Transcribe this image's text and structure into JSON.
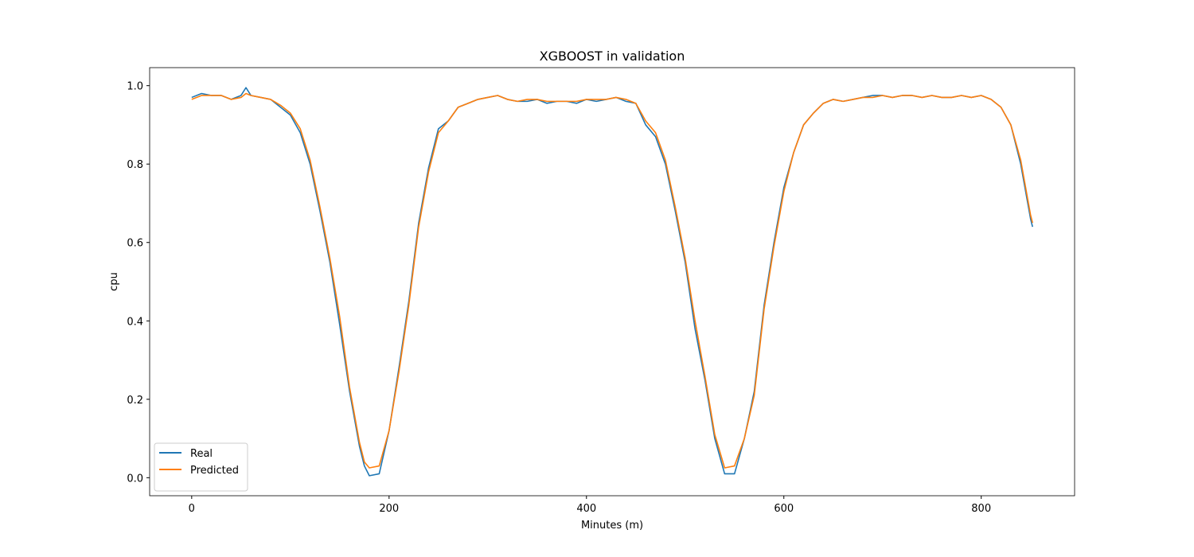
{
  "chart_data": {
    "type": "line",
    "title": "XGBOOST in validation",
    "x_label": "Minutes (m)",
    "y_label": "cpu",
    "x": [
      0,
      10,
      20,
      30,
      40,
      50,
      55,
      60,
      70,
      80,
      90,
      100,
      110,
      120,
      130,
      140,
      150,
      160,
      170,
      175,
      180,
      190,
      200,
      210,
      220,
      230,
      240,
      250,
      260,
      270,
      280,
      290,
      300,
      310,
      320,
      330,
      340,
      350,
      360,
      370,
      380,
      390,
      400,
      410,
      420,
      430,
      440,
      450,
      460,
      470,
      480,
      490,
      500,
      510,
      520,
      530,
      540,
      550,
      560,
      570,
      580,
      590,
      600,
      610,
      620,
      630,
      640,
      650,
      660,
      670,
      680,
      690,
      700,
      710,
      720,
      730,
      740,
      750,
      760,
      770,
      780,
      790,
      800,
      810,
      820,
      830,
      840,
      850,
      852
    ],
    "series": [
      {
        "name": "Real",
        "color": "#1f77b4",
        "values": [
          0.97,
          0.98,
          0.975,
          0.975,
          0.965,
          0.975,
          0.995,
          0.975,
          0.97,
          0.965,
          0.945,
          0.925,
          0.88,
          0.8,
          0.68,
          0.55,
          0.39,
          0.22,
          0.08,
          0.03,
          0.005,
          0.01,
          0.12,
          0.28,
          0.45,
          0.65,
          0.79,
          0.89,
          0.91,
          0.945,
          0.955,
          0.965,
          0.97,
          0.975,
          0.965,
          0.96,
          0.96,
          0.965,
          0.955,
          0.96,
          0.96,
          0.955,
          0.965,
          0.96,
          0.965,
          0.97,
          0.96,
          0.955,
          0.9,
          0.87,
          0.8,
          0.68,
          0.55,
          0.38,
          0.25,
          0.1,
          0.01,
          0.01,
          0.1,
          0.22,
          0.44,
          0.6,
          0.74,
          0.83,
          0.9,
          0.93,
          0.955,
          0.965,
          0.96,
          0.965,
          0.97,
          0.975,
          0.975,
          0.97,
          0.975,
          0.975,
          0.97,
          0.975,
          0.97,
          0.97,
          0.975,
          0.97,
          0.975,
          0.965,
          0.945,
          0.9,
          0.8,
          0.66,
          0.64
        ]
      },
      {
        "name": "Predicted",
        "color": "#ff7f0e",
        "values": [
          0.965,
          0.975,
          0.975,
          0.975,
          0.965,
          0.97,
          0.98,
          0.975,
          0.97,
          0.965,
          0.95,
          0.93,
          0.89,
          0.81,
          0.69,
          0.56,
          0.41,
          0.23,
          0.09,
          0.04,
          0.025,
          0.03,
          0.12,
          0.27,
          0.44,
          0.64,
          0.78,
          0.88,
          0.91,
          0.945,
          0.955,
          0.965,
          0.97,
          0.975,
          0.965,
          0.96,
          0.965,
          0.965,
          0.96,
          0.96,
          0.96,
          0.96,
          0.965,
          0.965,
          0.965,
          0.97,
          0.965,
          0.955,
          0.91,
          0.88,
          0.81,
          0.69,
          0.56,
          0.4,
          0.26,
          0.11,
          0.025,
          0.03,
          0.1,
          0.21,
          0.43,
          0.59,
          0.73,
          0.83,
          0.9,
          0.93,
          0.955,
          0.965,
          0.96,
          0.965,
          0.97,
          0.97,
          0.975,
          0.97,
          0.975,
          0.975,
          0.97,
          0.975,
          0.97,
          0.97,
          0.975,
          0.97,
          0.975,
          0.965,
          0.945,
          0.9,
          0.81,
          0.67,
          0.65
        ]
      }
    ],
    "xlim": [
      -42.6,
      894.6
    ],
    "ylim": [
      -0.046,
      1.046
    ],
    "xticks": [
      0,
      200,
      400,
      600,
      800
    ],
    "yticks": [
      {
        "value": 0,
        "label": "0.0"
      },
      0.2,
      0.4,
      0.6,
      0.8,
      {
        "value": 1,
        "label": "1.0"
      }
    ],
    "legend": "lower left"
  }
}
